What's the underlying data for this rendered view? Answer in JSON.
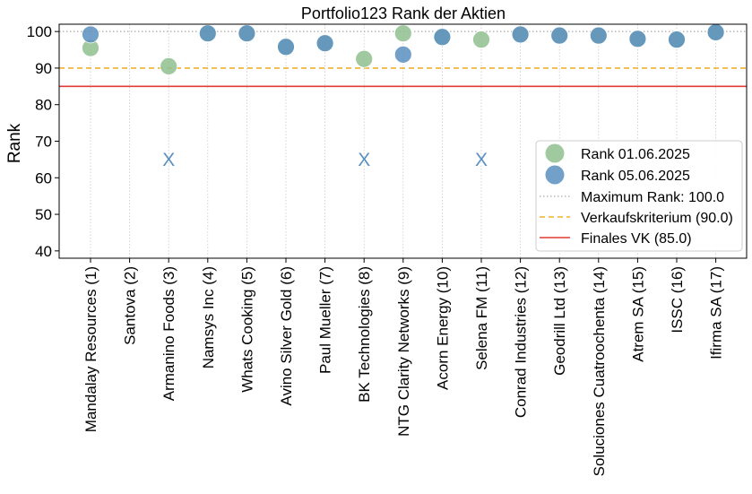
{
  "chart_data": {
    "type": "scatter",
    "title": "Portfolio123 Rank der Aktien",
    "xlabel": "",
    "ylabel": "Rank",
    "ylim": [
      38,
      102
    ],
    "yticks": [
      40,
      50,
      60,
      70,
      80,
      90,
      100
    ],
    "categories": [
      "Mandalay Resources (1)",
      "Santova (2)",
      "Armanino Foods (3)",
      "Namsys Inc (4)",
      "Whats Cooking (5)",
      "Avino Silver Gold (6)",
      "Paul Mueller (7)",
      "BK Technologies (8)",
      "NTG Clarity Networks (9)",
      "Acorn Energy (10)",
      "Selena FM (11)",
      "Conrad Industries (12)",
      "Geodrill Ltd (13)",
      "Soluciones Cuatroochenta (14)",
      "Atrem SA (15)",
      "ISSC (16)",
      "Ifirma SA (17)"
    ],
    "series": [
      {
        "name": "Rank 01.06.2025",
        "color": "#8fbf8f",
        "values": [
          95.5,
          null,
          90.5,
          99.5,
          99.5,
          95.8,
          96.8,
          92.5,
          99.5,
          98.5,
          97.8,
          99.2,
          98.9,
          98.9,
          98.0,
          97.8,
          99.8
        ]
      },
      {
        "name": "Rank 05.06.2025",
        "color": "#5b8fbf",
        "values": [
          99.2,
          null,
          null,
          99.5,
          99.5,
          95.8,
          96.8,
          null,
          93.7,
          98.5,
          null,
          99.2,
          98.9,
          98.9,
          98.0,
          97.8,
          99.8
        ]
      }
    ],
    "missing_markers": {
      "symbol": "X",
      "y": 65,
      "categories": [
        "Armanino Foods (3)",
        "BK Technologies (8)",
        "Selena FM (11)"
      ],
      "color": "#5b8fbf"
    },
    "reference_lines": [
      {
        "name": "Maximum Rank: 100.0",
        "y": 100,
        "color": "#aaaaaa",
        "style": "dotted"
      },
      {
        "name": "Verkaufskriterium (90.0)",
        "y": 90,
        "color": "#f0b030",
        "style": "dashed"
      },
      {
        "name": "Finales VK (85.0)",
        "y": 85,
        "color": "#e03c30",
        "style": "solid"
      }
    ],
    "grid": "vertical dotted",
    "legend_position": "lower-right"
  }
}
